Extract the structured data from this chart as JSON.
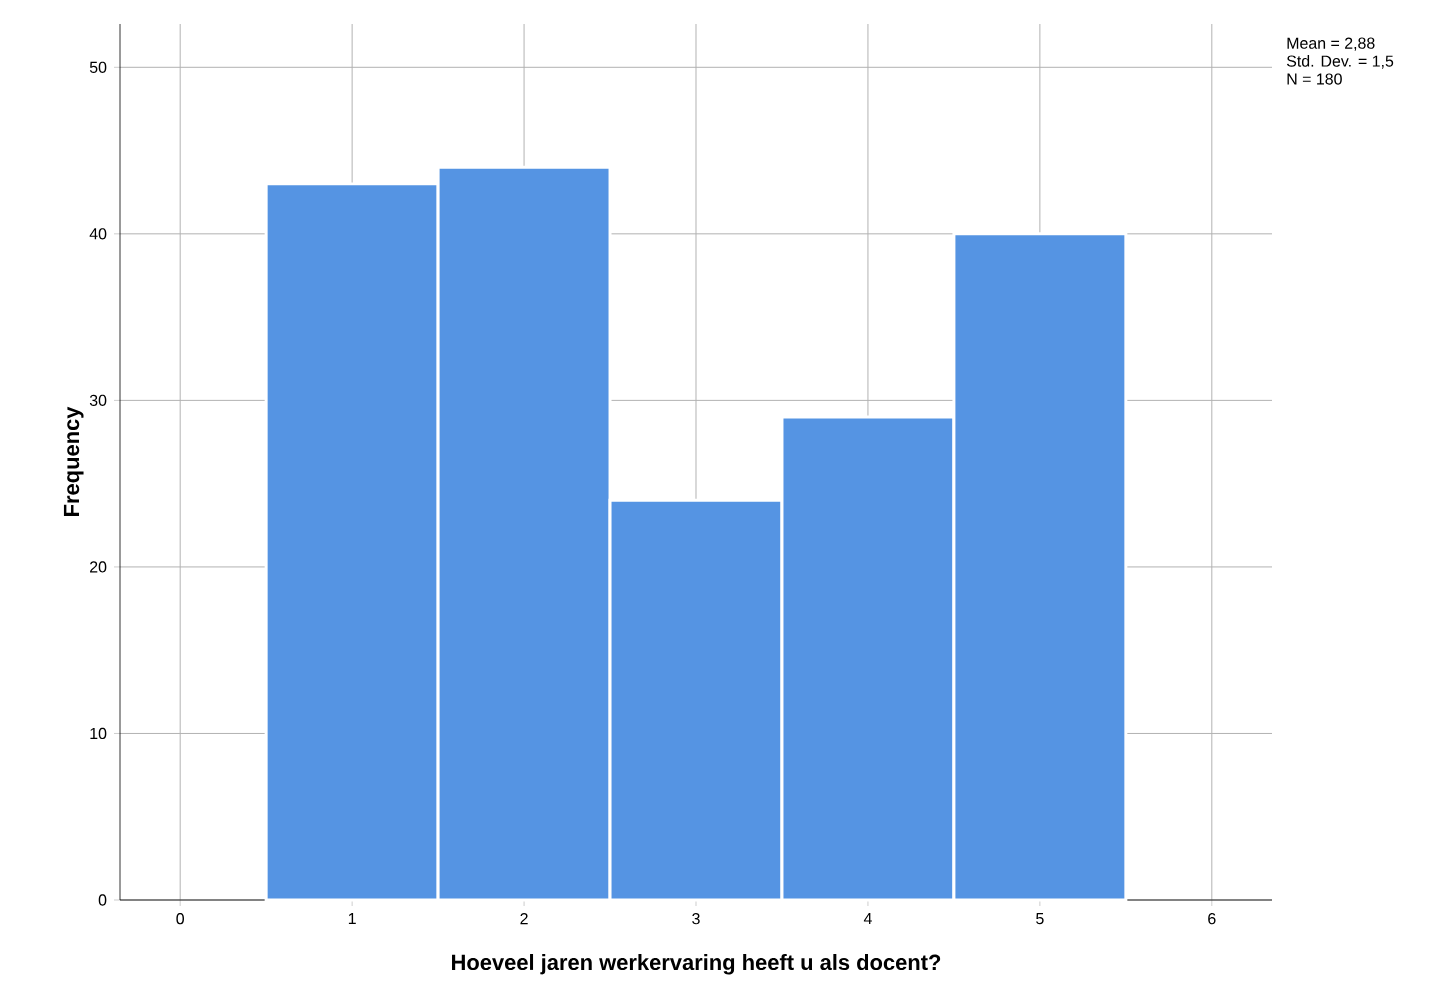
{
  "chart_data": {
    "type": "histogram",
    "xlabel": "Hoeveel jaren werkervaring heeft u als docent?",
    "ylabel": "Frequency",
    "bins": [
      0.5,
      1.5,
      2.5,
      3.5,
      4.5,
      5.5
    ],
    "values": [
      43,
      44,
      24,
      29,
      40
    ],
    "color": "#5594e3",
    "xlim": [
      -0.35,
      6.35
    ],
    "xticks": [
      0,
      1,
      2,
      3,
      4,
      5,
      6
    ],
    "ylim": [
      0,
      52.6
    ],
    "yticks": [
      0,
      10,
      20,
      30,
      40,
      50
    ],
    "grid": true,
    "annotations": [
      "Mean = 2,88",
      "Std. Dev. = 1,5",
      "N = 180"
    ]
  }
}
